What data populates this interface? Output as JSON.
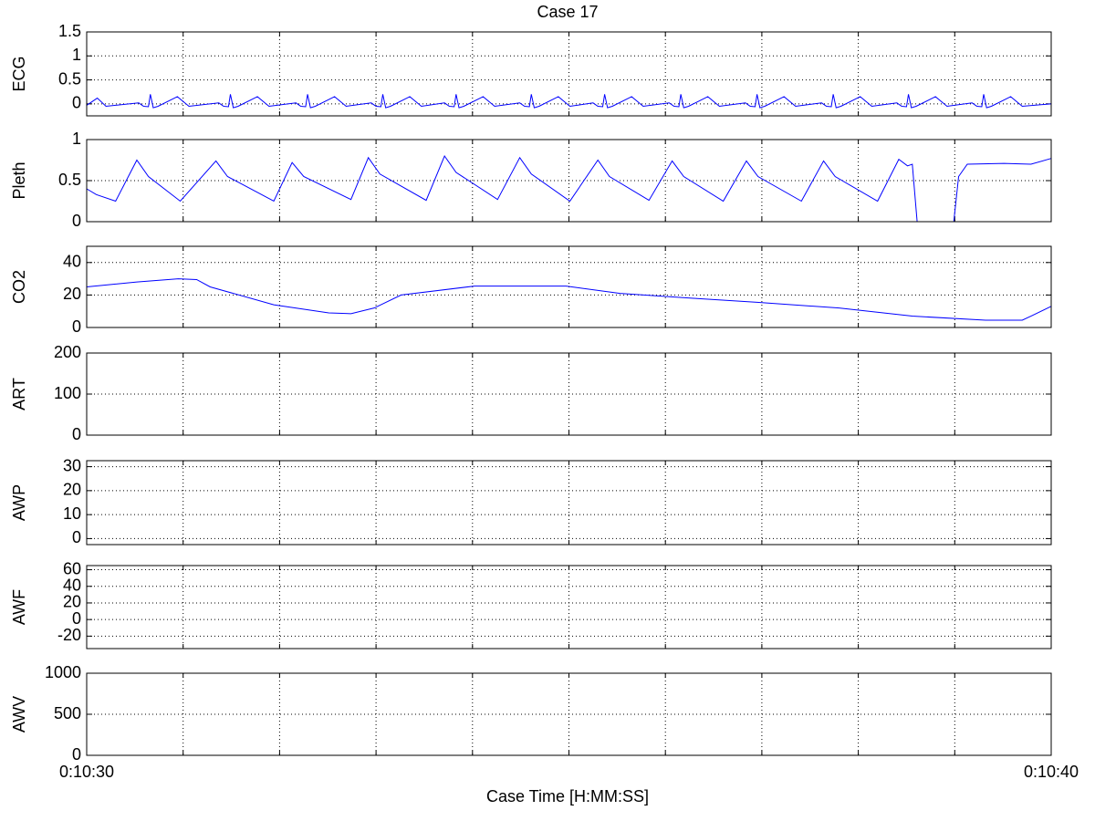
{
  "title": "Case 17",
  "xlabel": "Case Time [H:MM:SS]",
  "xlim": [
    630,
    640
  ],
  "xticks": [
    {
      "value": 630,
      "label": "0:10:30"
    },
    {
      "value": 640,
      "label": "0:10:40"
    }
  ],
  "xgrid": [
    631,
    632,
    633,
    634,
    635,
    636,
    637,
    638,
    639
  ],
  "chart_data": [
    {
      "type": "line",
      "ylabel": "ECG",
      "ylim": [
        -0.25,
        1.5
      ],
      "yticks": [
        0,
        0.5,
        1,
        1.5
      ],
      "grid": true,
      "x": [
        630.0,
        630.11,
        630.2,
        630.54,
        630.59,
        630.64,
        630.66,
        630.69,
        630.74,
        630.94,
        631.06,
        631.37,
        631.42,
        631.47,
        631.49,
        631.52,
        631.57,
        631.77,
        631.89,
        632.17,
        632.22,
        632.27,
        632.29,
        632.32,
        632.37,
        632.57,
        632.69,
        632.95,
        633.0,
        633.05,
        633.07,
        633.1,
        633.15,
        633.35,
        633.47,
        633.71,
        633.76,
        633.81,
        633.83,
        633.86,
        633.91,
        634.11,
        634.23,
        634.49,
        634.54,
        634.59,
        634.61,
        634.64,
        634.69,
        634.89,
        635.01,
        635.25,
        635.3,
        635.35,
        635.37,
        635.4,
        635.45,
        635.65,
        635.77,
        636.04,
        636.09,
        636.14,
        636.16,
        636.19,
        636.24,
        636.44,
        636.56,
        636.83,
        636.88,
        636.93,
        636.95,
        636.98,
        637.03,
        637.23,
        637.35,
        637.62,
        637.67,
        637.72,
        637.74,
        637.77,
        637.82,
        638.02,
        638.14,
        638.4,
        638.45,
        638.5,
        638.52,
        638.55,
        638.6,
        638.8,
        638.92,
        639.18,
        639.23,
        639.28,
        639.3,
        639.33,
        639.38,
        639.58,
        639.7,
        640.0
      ],
      "series": [
        {
          "color": "#0000ff",
          "values": [
            -0.03,
            0.12,
            -0.05,
            0.02,
            -0.05,
            -0.06,
            0.2,
            -0.08,
            -0.05,
            0.15,
            -0.05,
            0.02,
            -0.05,
            -0.06,
            0.2,
            -0.08,
            -0.05,
            0.15,
            -0.05,
            0.02,
            -0.05,
            -0.06,
            0.2,
            -0.08,
            -0.05,
            0.15,
            -0.05,
            0.02,
            -0.05,
            -0.06,
            0.2,
            -0.08,
            -0.05,
            0.15,
            -0.05,
            0.02,
            -0.05,
            -0.06,
            0.2,
            -0.08,
            -0.05,
            0.15,
            -0.05,
            0.02,
            -0.05,
            -0.06,
            0.2,
            -0.08,
            -0.05,
            0.15,
            -0.05,
            0.02,
            -0.05,
            -0.06,
            0.2,
            -0.08,
            -0.05,
            0.15,
            -0.05,
            0.02,
            -0.05,
            -0.06,
            0.2,
            -0.08,
            -0.05,
            0.15,
            -0.05,
            0.02,
            -0.05,
            -0.06,
            0.2,
            -0.08,
            -0.05,
            0.15,
            -0.05,
            0.02,
            -0.05,
            -0.06,
            0.2,
            -0.08,
            -0.05,
            0.15,
            -0.05,
            0.02,
            -0.05,
            -0.06,
            0.2,
            -0.08,
            -0.05,
            0.15,
            -0.05,
            0.02,
            -0.05,
            -0.06,
            0.2,
            -0.08,
            -0.05,
            0.15,
            -0.05,
            0.0
          ]
        }
      ]
    },
    {
      "type": "line",
      "ylabel": "Pleth",
      "ylim": [
        0,
        1
      ],
      "yticks": [
        0,
        0.5,
        1
      ],
      "grid": true,
      "x": [
        630.0,
        630.1,
        630.3,
        630.52,
        630.64,
        630.97,
        631.34,
        631.46,
        631.94,
        632.13,
        632.25,
        632.74,
        632.92,
        633.04,
        633.52,
        633.71,
        633.83,
        634.26,
        634.49,
        634.61,
        635.01,
        635.3,
        635.42,
        635.83,
        636.07,
        636.19,
        636.6,
        636.84,
        636.96,
        637.41,
        637.64,
        637.76,
        638.2,
        638.42,
        638.51,
        638.56,
        638.61,
        638.99,
        639.04,
        639.13,
        639.51,
        639.79,
        640.0
      ],
      "series": [
        {
          "color": "#0000ff",
          "values": [
            0.4,
            0.33,
            0.25,
            0.75,
            0.55,
            0.25,
            0.74,
            0.55,
            0.25,
            0.72,
            0.55,
            0.27,
            0.78,
            0.58,
            0.26,
            0.8,
            0.6,
            0.27,
            0.78,
            0.58,
            0.25,
            0.75,
            0.55,
            0.26,
            0.74,
            0.55,
            0.25,
            0.74,
            0.55,
            0.25,
            0.74,
            0.55,
            0.25,
            0.76,
            0.68,
            0.7,
            0.0,
            0.0,
            0.55,
            0.7,
            0.71,
            0.7,
            0.77
          ]
        }
      ]
    },
    {
      "type": "line",
      "ylabel": "CO2",
      "ylim": [
        0,
        50
      ],
      "yticks": [
        0,
        20,
        40
      ],
      "grid": true,
      "x": [
        630.0,
        630.52,
        630.95,
        631.14,
        631.28,
        631.94,
        632.51,
        632.74,
        632.98,
        633.26,
        634.02,
        634.97,
        635.53,
        636.29,
        636.95,
        637.8,
        638.56,
        639.32,
        639.7,
        639.79,
        640.0
      ],
      "series": [
        {
          "color": "#0000ff",
          "values": [
            25,
            28,
            30,
            29.5,
            25,
            14,
            9,
            8.5,
            12,
            20,
            25.5,
            25.5,
            21,
            18,
            15.5,
            12,
            7,
            4.5,
            4.5,
            7,
            13
          ]
        }
      ]
    },
    {
      "type": "line",
      "ylabel": "ART",
      "ylim": [
        0,
        200
      ],
      "yticks": [
        0,
        100,
        200
      ],
      "grid": true
    },
    {
      "type": "line",
      "ylabel": "AWP",
      "ylim": [
        -2.5,
        32.5
      ],
      "yticks": [
        0,
        10,
        20,
        30
      ],
      "grid": true
    },
    {
      "type": "line",
      "ylabel": "AWF",
      "ylim": [
        -35,
        65
      ],
      "yticks": [
        -20,
        0,
        20,
        40,
        60
      ],
      "grid": true
    },
    {
      "type": "line",
      "ylabel": "AWV",
      "ylim": [
        0,
        1000
      ],
      "yticks": [
        0,
        500,
        1000
      ],
      "grid": true
    }
  ]
}
